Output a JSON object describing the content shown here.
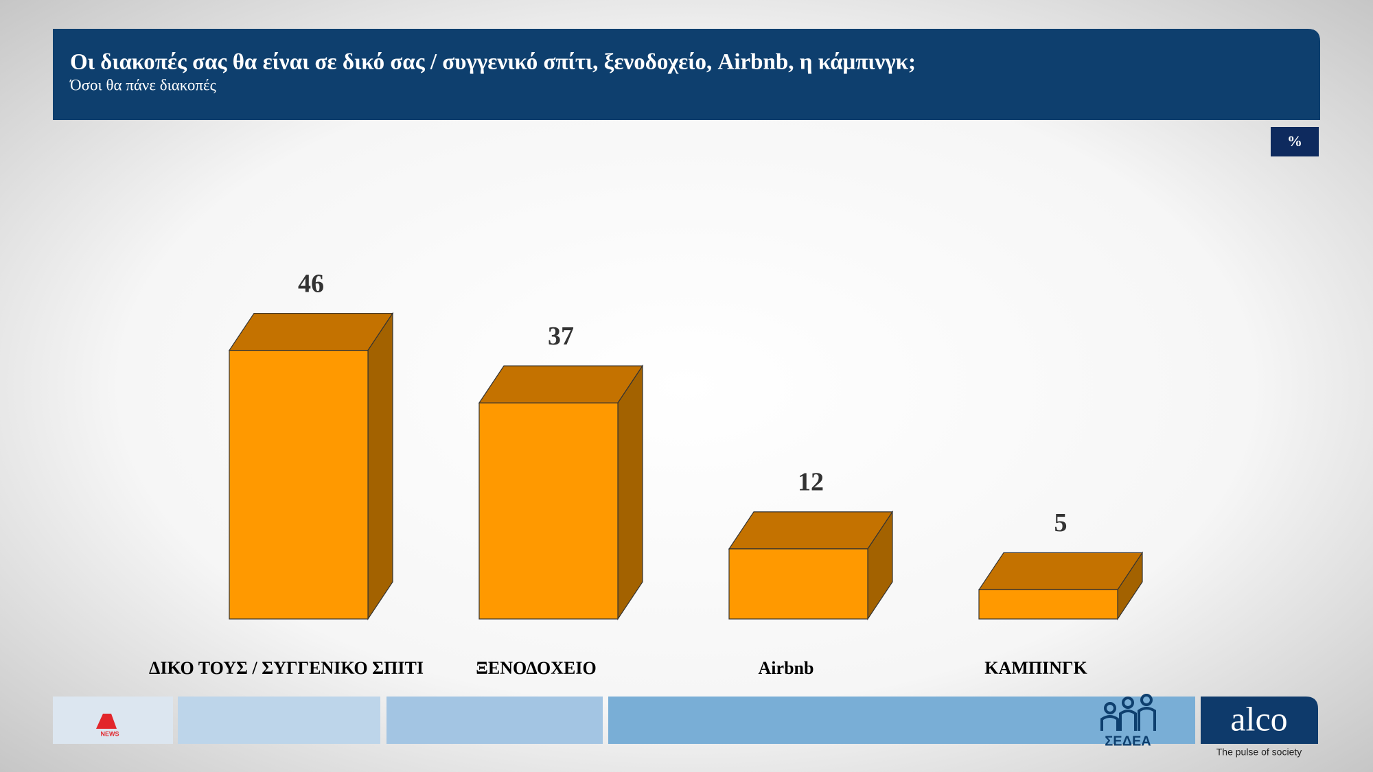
{
  "chart_data": {
    "type": "bar3d",
    "title": "Οι διακοπές σας θα είναι σε δικό σας / συγγενικό σπίτι, ξενοδοχείο, Airbnb, η κάμπινγκ;",
    "subtitle": "Όσοι θα πάνε διακοπές",
    "unit": "%",
    "categories": [
      "ΔΙΚΟ ΤΟΥΣ / ΣΥΓΓΕΝΙΚΟ ΣΠΙΤΙ",
      "ΞΕΝΟΔΟΧΕΙΟ",
      "Airbnb",
      "ΚΑΜΠΙΝΓΚ"
    ],
    "values": [
      46,
      37,
      12,
      5
    ],
    "color": "#ff9900"
  },
  "footer": {
    "news_logo": "NEWS",
    "sedea_logo": "ΣΕΔΕΑ",
    "alco_logo": "alco",
    "alco_tagline": "The pulse of society"
  }
}
